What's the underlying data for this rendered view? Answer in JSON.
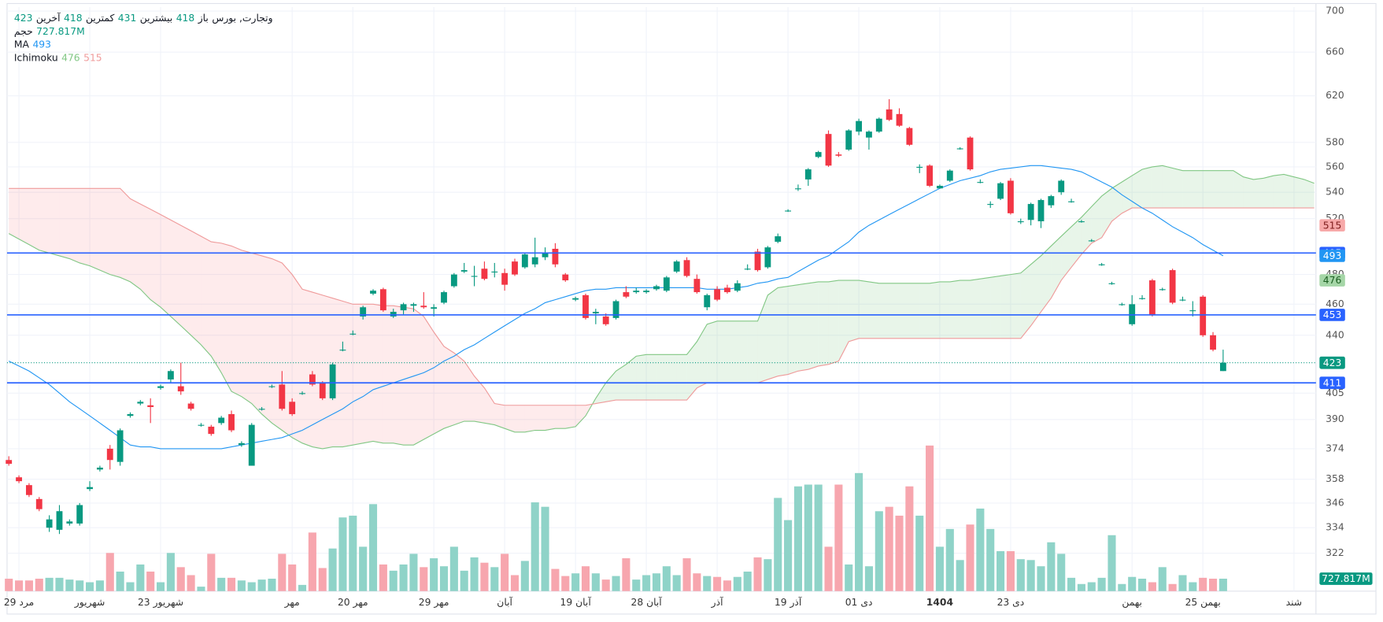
{
  "chart_data": {
    "type": "candlestick",
    "symbol": "وتجارت, بورس",
    "ohlc_names": [
      "باز",
      "بیشترین",
      "کمترین",
      "آخرین"
    ],
    "log_scale": true,
    "grid": true,
    "up_color": "#089981",
    "down_color": "#f23645",
    "ylim": [
      305,
      704
    ],
    "yticks": [
      700,
      660,
      620,
      580,
      560,
      540,
      520,
      480,
      460,
      440,
      405,
      390,
      374,
      358,
      346,
      334,
      322
    ],
    "categories": [
      null,
      "29 مرد",
      null,
      null,
      null,
      null,
      null,
      null,
      "شهریور",
      null,
      null,
      null,
      null,
      null,
      null,
      "23 شهریور",
      null,
      null,
      null,
      null,
      null,
      null,
      null,
      null,
      null,
      null,
      null,
      null,
      "مهر",
      null,
      null,
      null,
      null,
      null,
      "20 مهر",
      null,
      null,
      null,
      null,
      null,
      null,
      null,
      "29 مهر",
      null,
      null,
      null,
      null,
      null,
      null,
      "آبان",
      null,
      null,
      null,
      null,
      null,
      null,
      "19 آبان",
      null,
      null,
      null,
      null,
      null,
      null,
      "28 آبان",
      null,
      null,
      null,
      null,
      null,
      null,
      "آذر",
      null,
      null,
      null,
      null,
      null,
      null,
      "19 آذر",
      null,
      null,
      null,
      null,
      null,
      null,
      "01 دی",
      null,
      null,
      null,
      null,
      null,
      null,
      null,
      "1404",
      null,
      null,
      null,
      null,
      null,
      null,
      "23 دی",
      null,
      null,
      null,
      null,
      null,
      null,
      null,
      null,
      null,
      null,
      null,
      "بهمن",
      null,
      null,
      null,
      null,
      null,
      null,
      "25 بهمن",
      null,
      null,
      null,
      null,
      null,
      null,
      null,
      null,
      "شند",
      null,
      null
    ],
    "candles": [
      [
        368,
        370,
        365,
        366
      ],
      [
        359,
        360,
        356,
        357
      ],
      [
        355,
        356,
        349,
        350
      ],
      [
        348,
        349,
        342,
        343
      ],
      [
        334,
        340,
        332,
        338
      ],
      [
        333,
        345,
        331,
        342
      ],
      [
        336,
        338,
        335,
        337
      ],
      [
        336,
        346,
        335,
        345
      ],
      [
        353,
        357,
        352,
        354
      ],
      [
        363,
        365,
        362,
        364
      ],
      [
        374,
        376,
        363,
        368
      ],
      [
        367,
        385,
        365,
        384
      ],
      [
        392,
        394,
        391,
        393
      ],
      [
        399,
        401,
        398,
        400
      ],
      [
        398,
        402,
        388,
        397
      ],
      [
        408,
        410,
        407,
        409
      ],
      [
        413,
        419,
        411,
        418
      ],
      [
        409,
        423,
        404,
        406
      ],
      [
        399,
        400,
        395,
        396
      ],
      [
        387,
        388,
        386,
        387
      ],
      [
        386,
        387,
        381,
        382
      ],
      [
        388,
        392,
        387,
        391
      ],
      [
        393,
        395,
        383,
        384
      ],
      [
        376,
        378,
        375,
        377
      ],
      [
        365,
        388,
        365,
        387
      ],
      [
        396,
        397,
        395,
        396
      ],
      [
        409,
        410,
        408,
        409
      ],
      [
        410,
        418,
        395,
        396
      ],
      [
        400,
        402,
        392,
        393
      ],
      [
        405,
        406,
        404,
        405
      ],
      [
        416,
        418,
        409,
        410
      ],
      [
        411,
        412,
        401,
        402
      ],
      [
        402,
        423,
        401,
        422
      ],
      [
        431,
        436,
        430,
        431
      ],
      [
        441,
        443,
        440,
        441
      ],
      [
        452,
        459,
        450,
        458
      ],
      [
        467,
        470,
        466,
        469
      ],
      [
        470,
        471,
        455,
        456
      ],
      [
        452,
        457,
        451,
        455
      ],
      [
        456,
        461,
        453,
        460
      ],
      [
        459,
        461,
        455,
        460
      ],
      [
        459,
        468,
        457,
        458
      ],
      [
        457,
        460,
        452,
        458
      ],
      [
        461,
        469,
        460,
        468
      ],
      [
        472,
        481,
        471,
        480
      ],
      [
        482,
        488,
        481,
        483
      ],
      [
        479,
        486,
        472,
        479
      ],
      [
        484,
        489,
        476,
        477
      ],
      [
        482,
        488,
        478,
        482
      ],
      [
        481,
        484,
        469,
        473
      ],
      [
        489,
        491,
        479,
        480
      ],
      [
        485,
        495,
        484,
        494
      ],
      [
        487,
        506,
        485,
        492
      ],
      [
        492,
        499,
        490,
        495
      ],
      [
        498,
        502,
        485,
        487
      ],
      [
        480,
        481,
        475,
        476
      ],
      [
        463,
        465,
        462,
        464
      ],
      [
        466,
        467,
        450,
        451
      ],
      [
        454,
        457,
        447,
        455
      ],
      [
        452,
        454,
        446,
        447
      ],
      [
        451,
        463,
        450,
        462
      ],
      [
        468,
        472,
        464,
        465
      ],
      [
        468,
        471,
        467,
        469
      ],
      [
        468,
        470,
        467,
        469
      ],
      [
        470,
        473,
        469,
        472
      ],
      [
        469,
        479,
        468,
        478
      ],
      [
        482,
        490,
        481,
        489
      ],
      [
        490,
        492,
        478,
        479
      ],
      [
        477,
        480,
        467,
        468
      ],
      [
        458,
        467,
        456,
        466
      ],
      [
        470,
        472,
        462,
        463
      ],
      [
        471,
        473,
        467,
        468
      ],
      [
        469,
        476,
        468,
        474
      ],
      [
        484,
        487,
        483,
        484
      ],
      [
        496,
        498,
        482,
        483
      ],
      [
        485,
        500,
        484,
        499
      ],
      [
        503,
        509,
        502,
        507
      ],
      [
        526,
        527,
        525,
        526
      ],
      [
        543,
        546,
        541,
        543
      ],
      [
        550,
        559,
        545,
        558
      ],
      [
        568,
        573,
        567,
        572
      ],
      [
        587,
        590,
        560,
        561
      ],
      [
        570,
        572,
        568,
        569
      ],
      [
        574,
        591,
        573,
        590
      ],
      [
        589,
        600,
        586,
        598
      ],
      [
        584,
        590,
        574,
        589
      ],
      [
        589,
        601,
        588,
        600
      ],
      [
        608,
        617,
        598,
        599
      ],
      [
        604,
        609,
        593,
        594
      ],
      [
        592,
        593,
        577,
        578
      ],
      [
        560,
        562,
        555,
        560
      ],
      [
        561,
        562,
        544,
        545
      ],
      [
        543,
        546,
        543,
        545
      ],
      [
        549,
        558,
        548,
        557
      ],
      [
        575,
        576,
        574,
        575
      ],
      [
        584,
        585,
        557,
        558
      ],
      [
        548,
        550,
        547,
        548
      ],
      [
        531,
        533,
        528,
        531
      ],
      [
        535,
        548,
        534,
        547
      ],
      [
        549,
        551,
        523,
        524
      ],
      [
        518,
        520,
        516,
        518
      ],
      [
        519,
        532,
        515,
        531
      ],
      [
        518,
        535,
        513,
        534
      ],
      [
        530,
        538,
        528,
        537
      ],
      [
        540,
        550,
        538,
        549
      ],
      [
        533,
        535,
        532,
        533
      ],
      [
        518,
        519,
        517,
        518
      ],
      [
        504,
        505,
        503,
        504
      ],
      [
        487,
        488,
        486,
        487
      ],
      [
        474,
        475,
        473,
        474
      ],
      [
        460,
        461,
        459,
        460
      ],
      [
        447,
        466,
        446,
        460
      ],
      [
        464,
        466,
        463,
        464
      ],
      [
        476,
        477,
        452,
        453
      ],
      [
        470,
        471,
        469,
        470
      ],
      [
        483,
        484,
        460,
        461
      ],
      [
        463,
        465,
        462,
        463
      ],
      [
        456,
        462,
        452,
        456
      ],
      [
        465,
        466,
        439,
        440
      ],
      [
        440,
        442,
        430,
        431
      ],
      [
        418,
        431,
        418,
        423
      ],
      null,
      null,
      null,
      null,
      null,
      null,
      null,
      null,
      null
    ],
    "volume": {
      "name": "حجم",
      "last_label": "727.817M",
      "up_color": "#8fd3c8",
      "down_color": "#f7a6ae",
      "values": [
        728,
        624,
        624,
        728,
        780,
        780,
        676,
        624,
        520,
        624,
        2236,
        1144,
        520,
        1560,
        1144,
        520,
        2236,
        1404,
        936,
        260,
        2184,
        780,
        780,
        624,
        520,
        676,
        728,
        2184,
        1560,
        364,
        3432,
        1352,
        2496,
        4316,
        4420,
        2600,
        5096,
        1560,
        1196,
        1560,
        2184,
        1404,
        1924,
        1456,
        2600,
        1196,
        1976,
        1664,
        1404,
        2184,
        936,
        1768,
        5200,
        4940,
        1300,
        884,
        1040,
        1456,
        1040,
        676,
        884,
        1924,
        676,
        936,
        1040,
        1456,
        936,
        1924,
        1040,
        884,
        832,
        624,
        832,
        1144,
        1976,
        1872,
        5460,
        4160,
        6136,
        6240,
        6240,
        2600,
        6240,
        1560,
        6916,
        1456,
        4680,
        4940,
        4420,
        6136,
        4420,
        8528,
        2600,
        3640,
        1820,
        3900,
        4836,
        3640,
        2340,
        2340,
        1872,
        1820,
        1456,
        2860,
        2184,
        780,
        416,
        520,
        780,
        3276,
        416,
        832,
        728,
        520,
        1404,
        416,
        936,
        520,
        780,
        728,
        727.817,
        null,
        null,
        null,
        null,
        null,
        null,
        null,
        null,
        null
      ]
    },
    "ma": {
      "name": "MA",
      "color": "#2196f3",
      "values": [
        424,
        421,
        418,
        414,
        410,
        405,
        400,
        396,
        392,
        388,
        384,
        380,
        376,
        375,
        375,
        374,
        374,
        374,
        374,
        374,
        374,
        374,
        375,
        376,
        377,
        378,
        379,
        380,
        382,
        384,
        387,
        390,
        393,
        396,
        400,
        403,
        407,
        409,
        411,
        413,
        415,
        417,
        420,
        424,
        427,
        431,
        434,
        438,
        442,
        446,
        450,
        454,
        457,
        461,
        463,
        465,
        467,
        469,
        470,
        470,
        471,
        471,
        471,
        471,
        471,
        471,
        471,
        471,
        471,
        470,
        470,
        470,
        471,
        472,
        474,
        475,
        477,
        478,
        482,
        486,
        490,
        493,
        498,
        503,
        510,
        515,
        519,
        523,
        527,
        531,
        535,
        539,
        543,
        546,
        549,
        551,
        553,
        556,
        558,
        559,
        560,
        561,
        561,
        560,
        559,
        558,
        556,
        552,
        548,
        544,
        538,
        533,
        528,
        524,
        519,
        514,
        510,
        506,
        501,
        497,
        493,
        null,
        null,
        null,
        null,
        null,
        null,
        null,
        null,
        null
      ]
    },
    "ichimoku": {
      "name": "Ichimoku",
      "values": [
        476,
        515
      ],
      "colors": [
        "#81c784",
        "#ef9a9a"
      ],
      "span_a": [
        509,
        505,
        501,
        497,
        495,
        493,
        491,
        488,
        486,
        483,
        480,
        478,
        475,
        470,
        463,
        458,
        452,
        446,
        440,
        434,
        427,
        417,
        406,
        403,
        399,
        393,
        388,
        384,
        380,
        377,
        375,
        374,
        375,
        375,
        376,
        377,
        378,
        377,
        377,
        376,
        376,
        379,
        382,
        385,
        387,
        389,
        389,
        388,
        387,
        385,
        383,
        383,
        384,
        384,
        385,
        385,
        386,
        392,
        402,
        411,
        418,
        422,
        427,
        428,
        428,
        428,
        428,
        428,
        436,
        447,
        449,
        449,
        449,
        449,
        449,
        466,
        471,
        472,
        473,
        474,
        475,
        475,
        476,
        476,
        476,
        475,
        474,
        474,
        474,
        474,
        474,
        474,
        475,
        475,
        476,
        476,
        477,
        478,
        479,
        480,
        481,
        487,
        493,
        500,
        507,
        514,
        521,
        529,
        537,
        543,
        548,
        553,
        558,
        560,
        561,
        559,
        557,
        557,
        557,
        557,
        557,
        557,
        552,
        550,
        551,
        553,
        554,
        552,
        550,
        547
      ],
      "span_b": [
        543,
        543,
        543,
        543,
        543,
        543,
        543,
        543,
        543,
        543,
        543,
        543,
        535,
        531,
        527,
        523,
        519,
        515,
        511,
        507,
        503,
        502,
        500,
        497,
        495,
        493,
        491,
        488,
        480,
        470,
        468,
        466,
        464,
        462,
        460,
        460,
        460,
        459,
        459,
        458,
        457,
        452,
        442,
        433,
        429,
        424,
        415,
        408,
        399,
        398,
        398,
        398,
        398,
        398,
        398,
        398,
        398,
        398,
        399,
        400,
        401,
        401,
        401,
        401,
        401,
        401,
        401,
        401,
        408,
        411,
        411,
        411,
        411,
        411,
        411,
        413,
        415,
        416,
        418,
        419,
        421,
        422,
        424,
        436,
        438,
        438,
        438,
        438,
        438,
        438,
        438,
        438,
        438,
        438,
        438,
        438,
        438,
        438,
        438,
        438,
        438,
        446,
        455,
        464,
        476,
        485,
        494,
        502,
        506,
        518,
        524,
        528,
        528,
        528,
        528,
        528,
        528,
        528,
        528,
        528,
        528,
        528,
        528,
        528,
        528,
        528,
        528,
        528,
        528,
        528
      ]
    },
    "hlines": {
      "color": "#2962ff",
      "values": [
        495,
        453,
        411
      ]
    }
  }
}
